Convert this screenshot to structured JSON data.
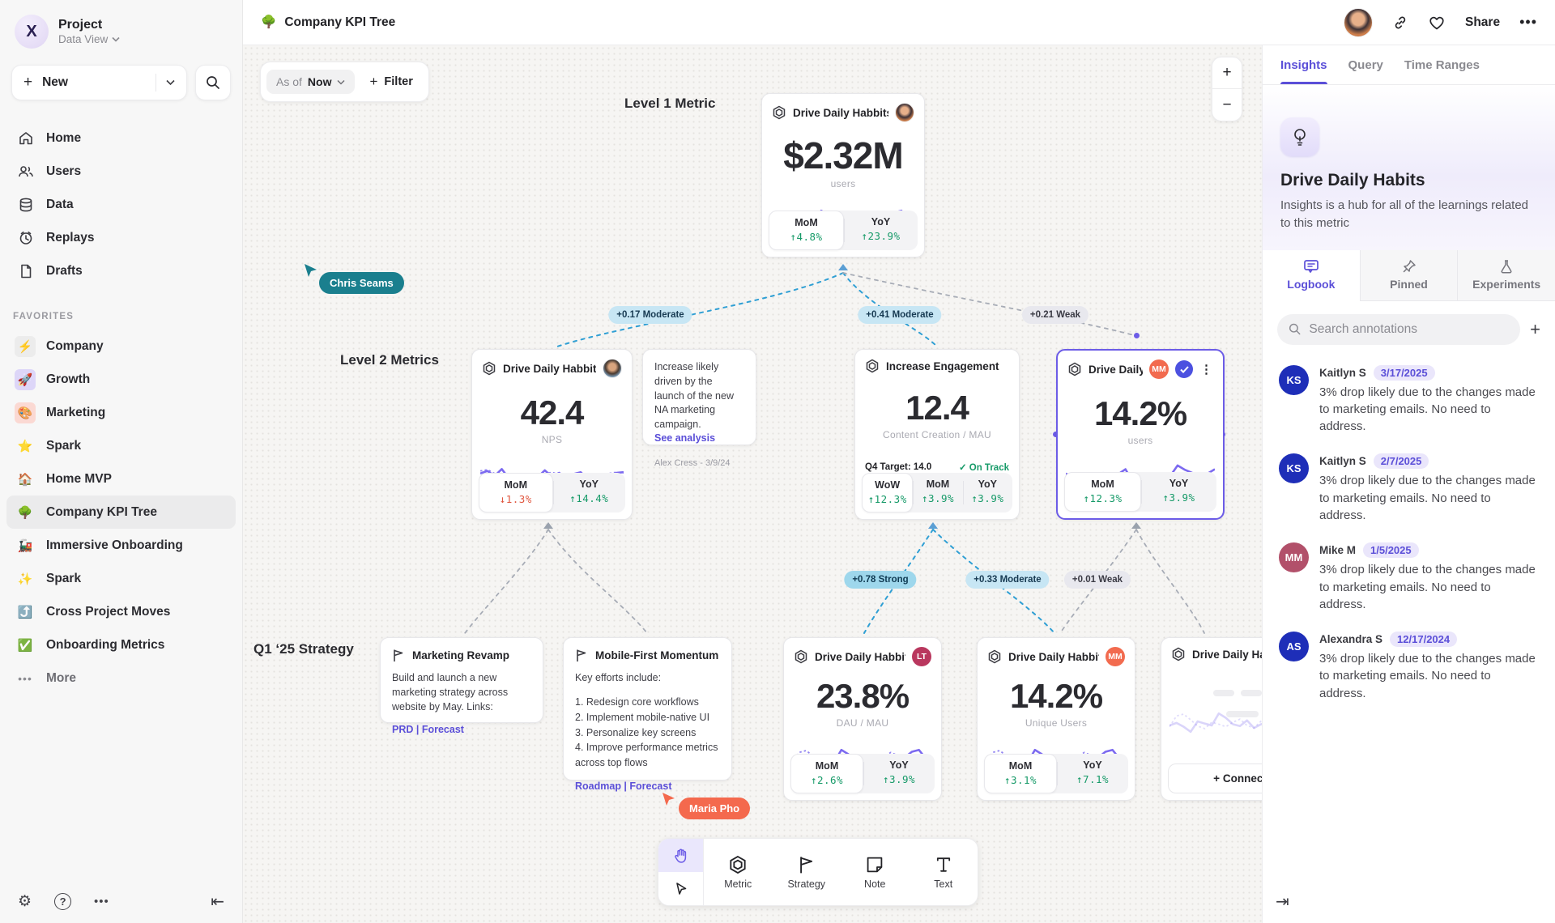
{
  "icons": {
    "plus": "+",
    "minus": "−",
    "kebab": "⋮",
    "kebab_h": "•••",
    "dots": "•••",
    "gear": "⚙",
    "help": "?",
    "collapse_left": "⇤",
    "collapse_right": "⇥",
    "check": "✓"
  },
  "sidebar": {
    "project_name": "Project",
    "workspace": "Data View",
    "new_label": "New",
    "nav": [
      {
        "label": "Home"
      },
      {
        "label": "Users"
      },
      {
        "label": "Data"
      },
      {
        "label": "Replays"
      },
      {
        "label": "Drafts"
      }
    ],
    "favorites_label": "FAVORITES",
    "favorites": [
      {
        "emoji": "⚡",
        "label": "Company"
      },
      {
        "emoji": "🚀",
        "label": "Growth"
      },
      {
        "emoji": "🎨",
        "label": "Marketing"
      },
      {
        "emoji": "⭐",
        "label": "Spark"
      },
      {
        "emoji": "🏠",
        "label": "Home MVP"
      },
      {
        "emoji": "🌳",
        "label": "Company KPI Tree",
        "selected": true
      },
      {
        "emoji": "🚂",
        "label": "Immersive Onboarding"
      },
      {
        "emoji": "✨",
        "label": "Spark"
      },
      {
        "emoji": "⤴️",
        "label": "Cross Project Moves"
      },
      {
        "emoji": "✅",
        "label": "Onboarding Metrics"
      }
    ],
    "more_label": "More"
  },
  "header": {
    "emoji": "🌳",
    "title": "Company KPI Tree",
    "share_label": "Share"
  },
  "canvas": {
    "as_of_label": "As of",
    "as_of_value": "Now",
    "filter_label": "Filter",
    "level1_label": "Level 1 Metric",
    "level2_label": "Level 2 Metrics",
    "strategy_label": "Q1 ‘25 Strategy",
    "cursors": {
      "chris": {
        "name": "Chris Seams",
        "color": "#1A7F8E"
      },
      "maria": {
        "name": "Maria Pho",
        "color": "#F4694D"
      }
    },
    "edges": {
      "e1": {
        "label": "+0.17 Moderate"
      },
      "e2": {
        "label": "+0.41 Moderate"
      },
      "e3": {
        "label": "+0.21 Weak"
      },
      "e4": {
        "label": "+0.78 Strong"
      },
      "e5": {
        "label": "+0.33 Moderate"
      },
      "e6": {
        "label": "+0.01 Weak"
      }
    },
    "cards": {
      "level1": {
        "title": "Drive Daily Habbits",
        "value": "$2.32M",
        "unit": "users",
        "mom_label": "MoM",
        "mom": "↑4.8%",
        "yoy_label": "YoY",
        "yoy": "↑23.9%"
      },
      "nps": {
        "title": "Drive Daily Habbits",
        "value": "42.4",
        "unit": "NPS",
        "mom_label": "MoM",
        "mom": "↓1.3%",
        "yoy_label": "YoY",
        "yoy": "↑14.4%"
      },
      "engagement": {
        "title": "Increase Engagement",
        "value": "12.4",
        "unit": "Content Creation / MAU",
        "target_label": "Q4 Target: 14.0",
        "status": "✓ On Track",
        "wow_label": "WoW",
        "wow": "↑12.3%",
        "mom_label": "MoM",
        "mom": "↑3.9%",
        "yoy_label": "YoY",
        "yoy": "↑3.9%"
      },
      "selected": {
        "title": "Drive Daily Habb..",
        "badge": "MM",
        "value": "14.2%",
        "unit": "users",
        "mom_label": "MoM",
        "mom": "↑12.3%",
        "yoy_label": "YoY",
        "yoy": "↑3.9%"
      },
      "dau": {
        "title": "Drive Daily Habbits",
        "badge": "LT",
        "value": "23.8%",
        "unit": "DAU / MAU",
        "mom_label": "MoM",
        "mom": "↑2.6%",
        "yoy_label": "YoY",
        "yoy": "↑3.9%"
      },
      "unique": {
        "title": "Drive Daily Habbits",
        "badge": "MM",
        "value": "14.2%",
        "unit": "Unique Users",
        "mom_label": "MoM",
        "mom": "↑3.1%",
        "yoy_label": "YoY",
        "yoy": "↑7.1%"
      },
      "partial": {
        "title": "Drive Daily Hab",
        "connect_label": "Connect"
      }
    },
    "note": {
      "text": "Increase likely driven by the launch of the new NA marketing campaign.",
      "link": "See analysis",
      "author": "Alex Cress - 3/9/24"
    },
    "strategies": {
      "marketing": {
        "title": "Marketing Revamp",
        "body": "Build and launch a new marketing strategy across website by May. Links:",
        "links": "PRD | Forecast"
      },
      "mobile": {
        "title": "Mobile-First Momentum",
        "intro": "Key efforts include:",
        "items": [
          "1.  Redesign core workflows",
          "2.  Implement mobile-native UI",
          "3.  Personalize key screens",
          "4.  Improve performance metrics across top flows"
        ],
        "links": "Roadmap | Forecast"
      }
    },
    "toolbar": {
      "metric": "Metric",
      "strategy": "Strategy",
      "note": "Note",
      "text": "Text"
    },
    "sparklines": {
      "a": {
        "solid": [
          0.42,
          0.5,
          0.38,
          0.22,
          0.55,
          0.48,
          0.42,
          0.8,
          0.66,
          0.46,
          0.4,
          0.58,
          0.34,
          0.46,
          0.52,
          0.42,
          0.56,
          0.74,
          0.8,
          0.52,
          0.44
        ],
        "dotted": [
          0.38,
          0.72,
          0.78,
          0.6,
          0.4,
          0.32,
          0.52,
          0.46,
          0.38,
          0.52,
          0.62,
          0.42,
          0.34,
          0.56,
          0.72,
          0.62,
          0.36,
          0.24,
          0.4,
          0.52,
          0.48
        ]
      },
      "b": {
        "solid": [
          0.58,
          0.66,
          0.5,
          0.72,
          0.42,
          0.18,
          0.36,
          0.52,
          0.46,
          0.68,
          0.48,
          0.6,
          0.44,
          0.56,
          0.62,
          0.4,
          0.3,
          0.26,
          0.42,
          0.6,
          0.62
        ],
        "dotted": [
          0.66,
          0.7,
          0.58,
          0.5,
          0.52,
          0.46,
          0.5,
          0.44,
          0.52,
          0.56,
          0.62,
          0.54,
          0.5,
          0.46,
          0.42,
          0.4,
          0.48,
          0.54,
          0.58,
          0.62,
          0.6
        ]
      },
      "c": {
        "solid": [
          0.6,
          0.52,
          0.3,
          0.4,
          0.56,
          0.62,
          0.52,
          0.58,
          0.74,
          0.34,
          0.5,
          0.6,
          0.48,
          0.3,
          0.52,
          0.86,
          0.72,
          0.62,
          0.58,
          0.6,
          0.74
        ],
        "dotted": [
          0.34,
          0.3,
          0.26,
          0.34,
          0.4,
          0.38,
          0.44,
          0.36,
          0.28,
          0.38,
          0.44,
          0.4,
          0.34,
          0.46,
          0.4,
          0.38,
          0.48,
          0.44,
          0.34,
          0.3,
          0.58
        ]
      }
    }
  },
  "panel": {
    "tabs": [
      {
        "label": "Insights"
      },
      {
        "label": "Query"
      },
      {
        "label": "Time Ranges"
      }
    ],
    "title": "Drive Daily Habits",
    "description": "Insights is a hub for all of the learnings related to this metric",
    "subtabs": [
      {
        "label": "Logbook"
      },
      {
        "label": "Pinned"
      },
      {
        "label": "Experiments"
      }
    ],
    "search_placeholder": "Search annotations",
    "annotations": [
      {
        "initials": "KS",
        "name": "Kaitlyn S",
        "date": "3/17/2025",
        "text": "3% drop likely due to the changes made to marketing emails. No need to address."
      },
      {
        "initials": "KS",
        "name": "Kaitlyn S",
        "date": "2/7/2025",
        "text": "3% drop likely due to the changes made to marketing emails. No need to address."
      },
      {
        "initials": "MM",
        "name": "Mike M",
        "date": "1/5/2025",
        "text": "3% drop likely due to the changes made to marketing emails. No need to address."
      },
      {
        "initials": "AS",
        "name": "Alexandra S",
        "date": "12/17/2024",
        "text": "3% drop likely due to the changes made to marketing emails. No need to address."
      }
    ]
  },
  "colors": {
    "accent_purple": "#6C5CE7",
    "link_purple": "#5B4FD8",
    "green_up": "#169A68",
    "red_down": "#E0563F",
    "edge_blue": "#2F9FD4",
    "cursor_teal": "#1A7F8E",
    "cursor_coral": "#F4694D",
    "badge_orange": "#F26B4F",
    "badge_crimson": "#B9375E",
    "avatar_blue": "#1E2EB8",
    "avatar_rose": "#B2506A"
  }
}
